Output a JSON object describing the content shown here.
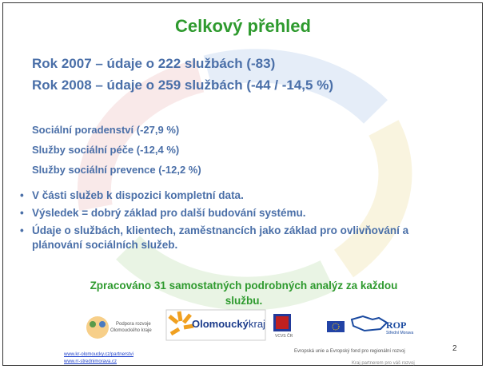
{
  "header": {
    "title": "Celkový přehled"
  },
  "summary": [
    "Rok 2007 – údaje o 222 službách (-83)",
    "Rok 2008 – údaje o 259 službách (-44 / -14,5 %)"
  ],
  "categories": [
    "Sociální poradenství (-27,9 %)",
    "Služby sociální péče (-12,4 %)",
    "Služby sociální prevence (-12,2 %)"
  ],
  "bullets": [
    "V části služeb k dispozici kompletní data.",
    "Výsledek = dobrý základ pro další budování systému.",
    "Údaje o službách, klientech, zaměstnancích jako základ pro ovlivňování a plánování sociálních služeb."
  ],
  "conclusion": "Zpracováno 31 samostatných podrobných analýz za každou službu.",
  "footer": {
    "logo_support": [
      "Podpora rozvoje",
      "Olomouckého kraje"
    ],
    "logo_region": [
      "Olomoucký",
      "kraj"
    ],
    "logo_vcvs": "VCVS ČR",
    "logo_rop": [
      "ROP",
      "Střední Morava"
    ],
    "links": [
      "www.kr-olomoucky.cz/partnerstvi",
      "www.rr-strednimorava.cz"
    ],
    "eu_text": "Evropská unie a Evropský fond pro regionální rozvoj",
    "motto": "Kraj partnerem pro váš rozvoj",
    "page_number": "2"
  }
}
